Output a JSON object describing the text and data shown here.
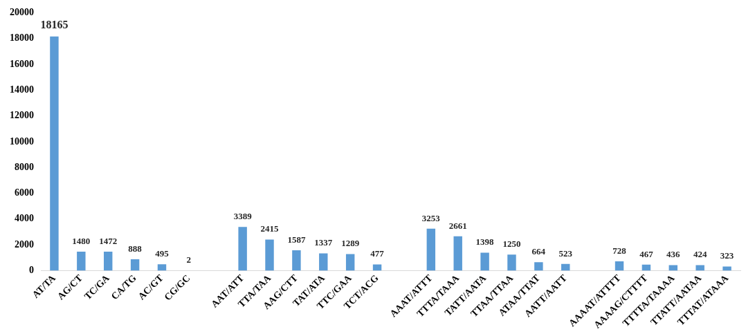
{
  "chart_data": {
    "type": "bar",
    "categories": [
      "AT/TA",
      "AG/CT",
      "TC/GA",
      "CA/TG",
      "AC/GT",
      "CG/GC",
      null,
      "AAT/ATT",
      "TTA/TAA",
      "AAG/CTT",
      "TAT/ATA",
      "TTC/GAA",
      "TCT/ACG",
      null,
      "AAAT/ATTT",
      "TTTA/TAAA",
      "TATT/AATA",
      "TTAA/TTAA",
      "ATAA/TTAT",
      "AATT/AATT",
      null,
      "AAAAT/ATTTT",
      "AAAAG/CTTTT",
      "TTTTA/TAAAA",
      "TTATT/AATAA",
      "TTTAT/ATAAA"
    ],
    "values": [
      18165,
      1480,
      1472,
      888,
      495,
      2,
      null,
      3389,
      2415,
      1587,
      1337,
      1289,
      477,
      null,
      3253,
      2661,
      1398,
      1250,
      664,
      523,
      null,
      728,
      467,
      436,
      424,
      323
    ],
    "color": "#5b9bd5",
    "ylim": [
      0,
      20000
    ],
    "yticks": [
      0,
      2000,
      4000,
      6000,
      8000,
      10000,
      12000,
      14000,
      16000,
      18000,
      20000
    ],
    "grid": false,
    "legend": false,
    "data_labels": true
  }
}
